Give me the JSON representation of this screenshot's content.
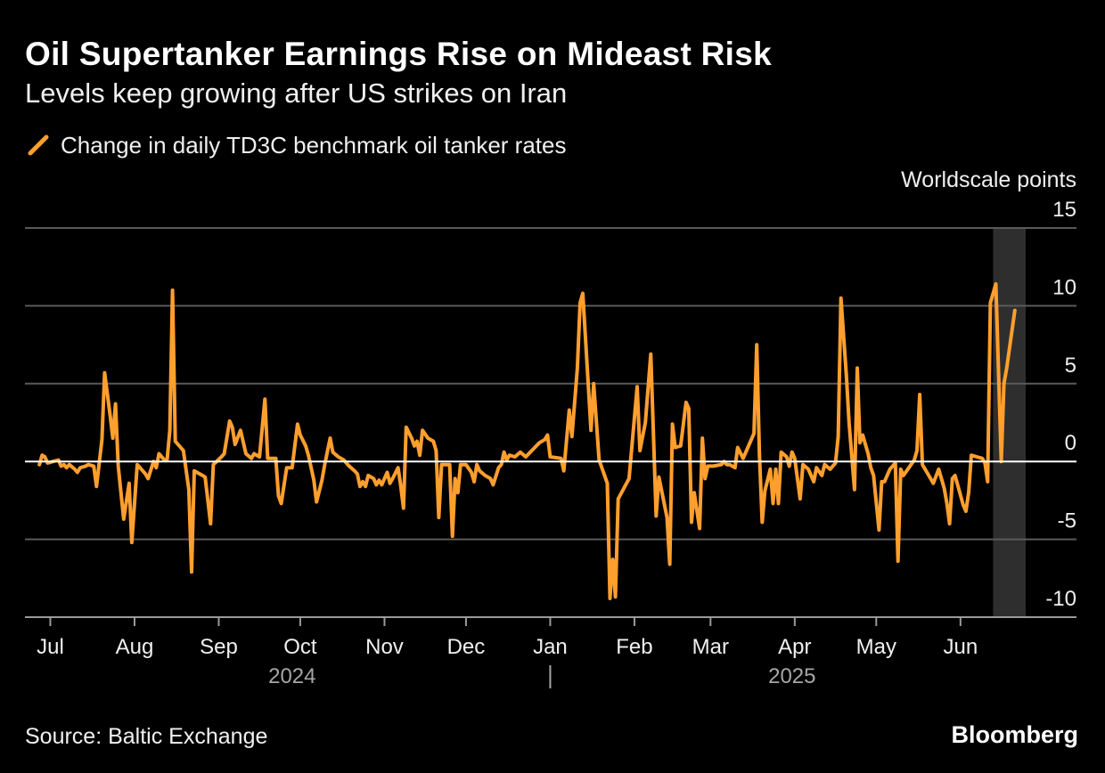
{
  "header": {
    "title": "Oil Supertanker Earnings Rise on Mideast Risk",
    "subtitle": "Levels keep growing after US strikes on Iran"
  },
  "footer": {
    "source": "Source: Baltic Exchange",
    "brand": "Bloomberg"
  },
  "colors": {
    "background": "#000000",
    "line": "#ff9f2e",
    "grid": "#5a5a5a",
    "zero_line": "#ffffff",
    "highlight_band": "#2e2e2e",
    "year_label": "#a6a6a6"
  },
  "chart_data": {
    "type": "line",
    "legend_position": "top-left",
    "grid": true,
    "ylabel": "Worldscale points",
    "ylim": [
      -10,
      15
    ],
    "y_ticks": [
      15,
      10,
      5,
      0,
      -5,
      -10
    ],
    "y_tick_labels": [
      "15",
      "10",
      "5",
      "0",
      "-5",
      "-10"
    ],
    "x_range": [
      "2024-06-22",
      "2025-06-25"
    ],
    "x_ticks": [
      {
        "date": "2024-07-01",
        "label": "Jul"
      },
      {
        "date": "2024-08-01",
        "label": "Aug"
      },
      {
        "date": "2024-09-01",
        "label": "Sep"
      },
      {
        "date": "2024-10-01",
        "label": "Oct"
      },
      {
        "date": "2024-11-01",
        "label": "Nov"
      },
      {
        "date": "2024-12-01",
        "label": "Dec"
      },
      {
        "date": "2025-01-01",
        "label": "Jan"
      },
      {
        "date": "2025-02-01",
        "label": "Feb"
      },
      {
        "date": "2025-03-01",
        "label": "Mar"
      },
      {
        "date": "2025-04-01",
        "label": "Apr"
      },
      {
        "date": "2025-05-01",
        "label": "May"
      },
      {
        "date": "2025-06-01",
        "label": "Jun"
      }
    ],
    "year_labels": [
      {
        "label": "2024",
        "date": "2024-09-28"
      },
      {
        "label": "2025",
        "date": "2025-03-31"
      }
    ],
    "year_divider": "2025-01-01",
    "highlight_range": [
      "2025-06-13",
      "2025-06-25"
    ],
    "series": [
      {
        "name": "Change in daily TD3C benchmark oil tanker rates",
        "points": [
          [
            "2024-06-27",
            -0.2
          ],
          [
            "2024-06-28",
            0.4
          ],
          [
            "2024-06-29",
            0.3
          ],
          [
            "2024-06-30",
            -0.1
          ],
          [
            "2024-07-02",
            0.0
          ],
          [
            "2024-07-04",
            0.1
          ],
          [
            "2024-07-05",
            -0.3
          ],
          [
            "2024-07-06",
            -0.2
          ],
          [
            "2024-07-07",
            -0.4
          ],
          [
            "2024-07-08",
            -0.2
          ],
          [
            "2024-07-10",
            -0.5
          ],
          [
            "2024-07-11",
            -0.7
          ],
          [
            "2024-07-12",
            -0.4
          ],
          [
            "2024-07-14",
            -0.3
          ],
          [
            "2024-07-15",
            -0.2
          ],
          [
            "2024-07-17",
            -0.3
          ],
          [
            "2024-07-18",
            -1.6
          ],
          [
            "2024-07-20",
            1.4
          ],
          [
            "2024-07-21",
            5.7
          ],
          [
            "2024-07-23",
            3.0
          ],
          [
            "2024-07-24",
            1.5
          ],
          [
            "2024-07-25",
            3.7
          ],
          [
            "2024-07-26",
            -0.3
          ],
          [
            "2024-07-28",
            -3.7
          ],
          [
            "2024-07-30",
            -1.4
          ],
          [
            "2024-07-31",
            -5.2
          ],
          [
            "2024-08-02",
            -0.2
          ],
          [
            "2024-08-03",
            -0.4
          ],
          [
            "2024-08-05",
            -0.8
          ],
          [
            "2024-08-06",
            -1.1
          ],
          [
            "2024-08-08",
            0.0
          ],
          [
            "2024-08-09",
            -0.4
          ],
          [
            "2024-08-10",
            0.5
          ],
          [
            "2024-08-12",
            0.1
          ],
          [
            "2024-08-13",
            0.1
          ],
          [
            "2024-08-14",
            2.0
          ],
          [
            "2024-08-15",
            11.0
          ],
          [
            "2024-08-16",
            1.3
          ],
          [
            "2024-08-19",
            0.7
          ],
          [
            "2024-08-21",
            -1.8
          ],
          [
            "2024-08-22",
            -7.1
          ],
          [
            "2024-08-23",
            -0.6
          ],
          [
            "2024-08-26",
            -0.9
          ],
          [
            "2024-08-27",
            -1.0
          ],
          [
            "2024-08-29",
            -4.0
          ],
          [
            "2024-08-30",
            -0.2
          ],
          [
            "2024-09-02",
            0.3
          ],
          [
            "2024-09-03",
            0.5
          ],
          [
            "2024-09-05",
            2.6
          ],
          [
            "2024-09-06",
            2.2
          ],
          [
            "2024-09-07",
            1.1
          ],
          [
            "2024-09-09",
            2.0
          ],
          [
            "2024-09-11",
            0.5
          ],
          [
            "2024-09-13",
            0.2
          ],
          [
            "2024-09-14",
            0.5
          ],
          [
            "2024-09-16",
            0.3
          ],
          [
            "2024-09-18",
            4.0
          ],
          [
            "2024-09-19",
            0.2
          ],
          [
            "2024-09-20",
            0.2
          ],
          [
            "2024-09-22",
            0.2
          ],
          [
            "2024-09-23",
            -2.2
          ],
          [
            "2024-09-24",
            -2.7
          ],
          [
            "2024-09-26",
            -0.4
          ],
          [
            "2024-09-28",
            -0.4
          ],
          [
            "2024-09-30",
            2.4
          ],
          [
            "2024-10-01",
            1.7
          ],
          [
            "2024-10-03",
            1.0
          ],
          [
            "2024-10-04",
            0.4
          ],
          [
            "2024-10-06",
            -1.2
          ],
          [
            "2024-10-07",
            -2.6
          ],
          [
            "2024-10-09",
            -1.2
          ],
          [
            "2024-10-10",
            -0.2
          ],
          [
            "2024-10-12",
            1.5
          ],
          [
            "2024-10-13",
            0.6
          ],
          [
            "2024-10-15",
            0.3
          ],
          [
            "2024-10-17",
            0.1
          ],
          [
            "2024-10-19",
            -0.3
          ],
          [
            "2024-10-21",
            -0.6
          ],
          [
            "2024-10-22",
            -0.8
          ],
          [
            "2024-10-23",
            -1.6
          ],
          [
            "2024-10-24",
            -1.3
          ],
          [
            "2024-10-25",
            -1.6
          ],
          [
            "2024-10-26",
            -0.9
          ],
          [
            "2024-10-28",
            -1.1
          ],
          [
            "2024-10-29",
            -1.5
          ],
          [
            "2024-10-30",
            -1.2
          ],
          [
            "2024-10-31",
            -1.5
          ],
          [
            "2024-11-02",
            -0.7
          ],
          [
            "2024-11-03",
            -1.4
          ],
          [
            "2024-11-04",
            -1.1
          ],
          [
            "2024-11-06",
            -0.4
          ],
          [
            "2024-11-07",
            -1.6
          ],
          [
            "2024-11-08",
            -3.0
          ],
          [
            "2024-11-09",
            2.2
          ],
          [
            "2024-11-11",
            1.5
          ],
          [
            "2024-11-12",
            1.0
          ],
          [
            "2024-11-13",
            1.3
          ],
          [
            "2024-11-14",
            0.4
          ],
          [
            "2024-11-15",
            2.0
          ],
          [
            "2024-11-17",
            1.5
          ],
          [
            "2024-11-19",
            1.3
          ],
          [
            "2024-11-20",
            0.7
          ],
          [
            "2024-11-21",
            -3.6
          ],
          [
            "2024-11-22",
            -0.2
          ],
          [
            "2024-11-23",
            -0.2
          ],
          [
            "2024-11-25",
            -0.2
          ],
          [
            "2024-11-26",
            -4.8
          ],
          [
            "2024-11-27",
            -1.1
          ],
          [
            "2024-11-28",
            -2.0
          ],
          [
            "2024-11-29",
            -0.2
          ],
          [
            "2024-12-01",
            -0.2
          ],
          [
            "2024-12-03",
            -0.7
          ],
          [
            "2024-12-04",
            -1.3
          ],
          [
            "2024-12-05",
            -0.2
          ],
          [
            "2024-12-06",
            -0.6
          ],
          [
            "2024-12-08",
            -0.9
          ],
          [
            "2024-12-10",
            -1.1
          ],
          [
            "2024-12-11",
            -1.5
          ],
          [
            "2024-12-13",
            -0.4
          ],
          [
            "2024-12-14",
            -0.2
          ],
          [
            "2024-12-15",
            0.6
          ],
          [
            "2024-12-16",
            0.1
          ],
          [
            "2024-12-17",
            0.4
          ],
          [
            "2024-12-19",
            0.3
          ],
          [
            "2024-12-21",
            0.6
          ],
          [
            "2024-12-23",
            0.3
          ],
          [
            "2024-12-28",
            1.2
          ],
          [
            "2024-12-30",
            1.4
          ],
          [
            "2024-12-31",
            1.7
          ],
          [
            "2025-01-01",
            0.3
          ],
          [
            "2025-01-05",
            0.2
          ],
          [
            "2025-01-06",
            -0.6
          ],
          [
            "2025-01-08",
            3.3
          ],
          [
            "2025-01-09",
            1.6
          ],
          [
            "2025-01-11",
            6.0
          ],
          [
            "2025-01-12",
            10.2
          ],
          [
            "2025-01-13",
            10.8
          ],
          [
            "2025-01-16",
            2.0
          ],
          [
            "2025-01-17",
            5.0
          ],
          [
            "2025-01-19",
            0.1
          ],
          [
            "2025-01-22",
            -1.4
          ],
          [
            "2025-01-23",
            -8.8
          ],
          [
            "2025-01-24",
            -6.3
          ],
          [
            "2025-01-25",
            -8.7
          ],
          [
            "2025-01-26",
            -2.4
          ],
          [
            "2025-01-30",
            -1.1
          ],
          [
            "2025-02-02",
            4.8
          ],
          [
            "2025-02-03",
            0.7
          ],
          [
            "2025-02-05",
            2.5
          ],
          [
            "2025-02-07",
            6.9
          ],
          [
            "2025-02-09",
            -3.5
          ],
          [
            "2025-02-10",
            -1.0
          ],
          [
            "2025-02-13",
            -3.6
          ],
          [
            "2025-02-14",
            -6.6
          ],
          [
            "2025-02-15",
            2.4
          ],
          [
            "2025-02-16",
            0.9
          ],
          [
            "2025-02-18",
            1.0
          ],
          [
            "2025-02-20",
            3.8
          ],
          [
            "2025-02-21",
            3.4
          ],
          [
            "2025-02-22",
            -3.9
          ],
          [
            "2025-02-23",
            -2.0
          ],
          [
            "2025-02-25",
            -4.3
          ],
          [
            "2025-02-26",
            1.5
          ],
          [
            "2025-02-27",
            -1.1
          ],
          [
            "2025-02-28",
            -0.3
          ],
          [
            "2025-03-02",
            -0.3
          ],
          [
            "2025-03-05",
            -0.2
          ],
          [
            "2025-03-06",
            0.0
          ],
          [
            "2025-03-07",
            -0.2
          ],
          [
            "2025-03-08",
            -0.2
          ],
          [
            "2025-03-10",
            -0.4
          ],
          [
            "2025-03-11",
            0.9
          ],
          [
            "2025-03-13",
            0.2
          ],
          [
            "2025-03-15",
            1.0
          ],
          [
            "2025-03-17",
            1.8
          ],
          [
            "2025-03-18",
            7.5
          ],
          [
            "2025-03-19",
            0.5
          ],
          [
            "2025-03-20",
            -3.9
          ],
          [
            "2025-03-21",
            -1.9
          ],
          [
            "2025-03-23",
            -0.5
          ],
          [
            "2025-03-24",
            -2.7
          ],
          [
            "2025-03-25",
            -0.5
          ],
          [
            "2025-03-26",
            -2.7
          ],
          [
            "2025-03-27",
            0.6
          ],
          [
            "2025-03-29",
            0.3
          ],
          [
            "2025-03-30",
            -0.3
          ],
          [
            "2025-03-31",
            0.6
          ],
          [
            "2025-04-01",
            0.2
          ],
          [
            "2025-04-03",
            -2.4
          ],
          [
            "2025-04-04",
            -0.2
          ],
          [
            "2025-04-06",
            -0.5
          ],
          [
            "2025-04-08",
            -1.3
          ],
          [
            "2025-04-09",
            -0.4
          ],
          [
            "2025-04-11",
            -0.9
          ],
          [
            "2025-04-12",
            -0.2
          ],
          [
            "2025-04-14",
            -0.5
          ],
          [
            "2025-04-16",
            -0.1
          ],
          [
            "2025-04-17",
            1.6
          ],
          [
            "2025-04-18",
            10.5
          ],
          [
            "2025-04-20",
            5.5
          ],
          [
            "2025-04-21",
            2.5
          ],
          [
            "2025-04-23",
            -1.8
          ],
          [
            "2025-04-24",
            6.0
          ],
          [
            "2025-04-25",
            1.2
          ],
          [
            "2025-04-26",
            1.7
          ],
          [
            "2025-04-28",
            0.5
          ],
          [
            "2025-04-29",
            -0.4
          ],
          [
            "2025-04-30",
            -0.9
          ],
          [
            "2025-05-02",
            -4.4
          ],
          [
            "2025-05-03",
            -1.3
          ],
          [
            "2025-05-04",
            -1.3
          ],
          [
            "2025-05-06",
            -0.5
          ],
          [
            "2025-05-08",
            -0.1
          ],
          [
            "2025-05-09",
            -6.4
          ],
          [
            "2025-05-10",
            -0.5
          ],
          [
            "2025-05-11",
            -0.9
          ],
          [
            "2025-05-13",
            -0.4
          ],
          [
            "2025-05-15",
            0.1
          ],
          [
            "2025-05-16",
            0.7
          ],
          [
            "2025-05-17",
            4.3
          ],
          [
            "2025-05-18",
            -0.2
          ],
          [
            "2025-05-21",
            -1.1
          ],
          [
            "2025-05-22",
            -1.4
          ],
          [
            "2025-05-24",
            -0.5
          ],
          [
            "2025-05-26",
            -1.7
          ],
          [
            "2025-05-27",
            -2.7
          ],
          [
            "2025-05-28",
            -4.0
          ],
          [
            "2025-05-29",
            -1.1
          ],
          [
            "2025-05-30",
            -0.9
          ],
          [
            "2025-06-02",
            -2.8
          ],
          [
            "2025-06-03",
            -3.2
          ],
          [
            "2025-06-04",
            -2.0
          ],
          [
            "2025-06-05",
            0.4
          ],
          [
            "2025-06-07",
            0.3
          ],
          [
            "2025-06-09",
            0.2
          ],
          [
            "2025-06-10",
            -0.1
          ],
          [
            "2025-06-11",
            -1.3
          ],
          [
            "2025-06-12",
            10.2
          ],
          [
            "2025-06-14",
            11.4
          ],
          [
            "2025-06-16",
            0.0
          ],
          [
            "2025-06-17",
            5.0
          ],
          [
            "2025-06-18",
            6.0
          ],
          [
            "2025-06-21",
            9.7
          ]
        ]
      }
    ]
  }
}
